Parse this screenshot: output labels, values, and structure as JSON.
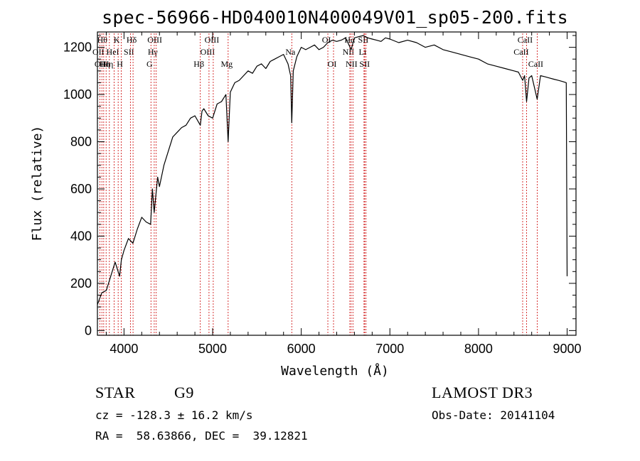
{
  "chart_data": {
    "type": "line",
    "title": "spec-56966-HD040010N400049V01_sp05-200.fits",
    "xlabel": "Wavelength (Å)",
    "ylabel": "Flux (relative)",
    "xlim": [
      3700,
      9100
    ],
    "ylim": [
      -20,
      1265
    ],
    "xticks": [
      4000,
      5000,
      6000,
      7000,
      8000,
      9000
    ],
    "yticks": [
      0,
      200,
      400,
      600,
      800,
      1000,
      1200
    ],
    "grid": false,
    "series": [
      {
        "x": [
          3700,
          3750,
          3800,
          3850,
          3900,
          3950,
          3970,
          4000,
          4050,
          4100,
          4150,
          4200,
          4250,
          4300,
          4320,
          4340,
          4380,
          4400,
          4450,
          4500,
          4550,
          4600,
          4650,
          4700,
          4750,
          4800,
          4861,
          4880,
          4900,
          4950,
          5000,
          5050,
          5100,
          5150,
          5175,
          5200,
          5250,
          5300,
          5350,
          5400,
          5450,
          5500,
          5550,
          5600,
          5650,
          5700,
          5750,
          5800,
          5850,
          5880,
          5893,
          5910,
          5950,
          6000,
          6050,
          6100,
          6150,
          6200,
          6250,
          6300,
          6350,
          6400,
          6450,
          6500,
          6563,
          6600,
          6650,
          6700,
          6750,
          6800,
          6850,
          6900,
          6950,
          7000,
          7100,
          7200,
          7300,
          7400,
          7500,
          7600,
          7700,
          7800,
          7900,
          8000,
          8100,
          8200,
          8300,
          8400,
          8450,
          8498,
          8520,
          8542,
          8570,
          8600,
          8662,
          8700,
          8750,
          8800,
          8850,
          8900,
          8950,
          8990,
          9000
        ],
        "y": [
          110,
          160,
          170,
          230,
          290,
          230,
          300,
          340,
          390,
          370,
          430,
          480,
          460,
          450,
          600,
          500,
          650,
          610,
          700,
          760,
          820,
          840,
          860,
          870,
          900,
          910,
          870,
          930,
          940,
          910,
          900,
          960,
          970,
          1000,
          800,
          1010,
          1050,
          1060,
          1080,
          1100,
          1090,
          1120,
          1130,
          1110,
          1140,
          1150,
          1160,
          1170,
          1130,
          1080,
          880,
          1100,
          1160,
          1200,
          1190,
          1200,
          1210,
          1190,
          1200,
          1220,
          1230,
          1225,
          1230,
          1240,
          1190,
          1240,
          1245,
          1250,
          1240,
          1235,
          1230,
          1225,
          1240,
          1235,
          1220,
          1230,
          1220,
          1200,
          1210,
          1190,
          1180,
          1170,
          1160,
          1150,
          1130,
          1120,
          1110,
          1100,
          1095,
          1060,
          1080,
          970,
          1070,
          1080,
          980,
          1080,
          1075,
          1070,
          1065,
          1060,
          1055,
          1050,
          230
        ]
      }
    ],
    "line_markers": [
      {
        "wavelength": 3727,
        "label": "OII",
        "row": 2
      },
      {
        "wavelength": 3750,
        "label": "OII",
        "row": 3
      },
      {
        "wavelength": 3771,
        "label": "Hθ",
        "row": 1
      },
      {
        "wavelength": 3798,
        "label": "Hη",
        "row": 3
      },
      {
        "wavelength": 3835,
        "label": "Hη",
        "row": 3
      },
      {
        "wavelength": 3889,
        "label": "HeI",
        "row": 2
      },
      {
        "wavelength": 3934,
        "label": "K",
        "row": 1
      },
      {
        "wavelength": 3969,
        "label": "H",
        "row": 3
      },
      {
        "wavelength": 4072,
        "label": "SII",
        "row": 2
      },
      {
        "wavelength": 4102,
        "label": "Hδ",
        "row": 1
      },
      {
        "wavelength": 4304,
        "label": "G",
        "row": 3
      },
      {
        "wavelength": 4341,
        "label": "Hγ",
        "row": 2
      },
      {
        "wavelength": 4363,
        "label": "OIII",
        "row": 1
      },
      {
        "wavelength": 4861,
        "label": "Hβ",
        "row": 3
      },
      {
        "wavelength": 4959,
        "label": "OIII",
        "row": 2
      },
      {
        "wavelength": 5007,
        "label": "OIII",
        "row": 1
      },
      {
        "wavelength": 5175,
        "label": "Mg",
        "row": 3
      },
      {
        "wavelength": 5893,
        "label": "Na",
        "row": 2
      },
      {
        "wavelength": 6300,
        "label": "OI",
        "row": 1
      },
      {
        "wavelength": 6364,
        "label": "OI",
        "row": 3
      },
      {
        "wavelength": 6548,
        "label": "NII",
        "row": 2
      },
      {
        "wavelength": 6563,
        "label": "Hα",
        "row": 1
      },
      {
        "wavelength": 6583,
        "label": "NII",
        "row": 3
      },
      {
        "wavelength": 6708,
        "label": "Li",
        "row": 2
      },
      {
        "wavelength": 6716,
        "label": "SII",
        "row": 1
      },
      {
        "wavelength": 6731,
        "label": "SII",
        "row": 3
      },
      {
        "wavelength": 8498,
        "label": "CaII",
        "row": 2
      },
      {
        "wavelength": 8542,
        "label": "CaII",
        "row": 1
      },
      {
        "wavelength": 8662,
        "label": "CaII",
        "row": 3
      }
    ]
  },
  "info": {
    "object_class": "STAR",
    "subclass": "G9",
    "survey": "LAMOST DR3",
    "cz": "cz = -128.3 ± 16.2 km/s",
    "obs_date": "Obs-Date: 20141104",
    "coords": "RA =  58.63866, DEC =  39.12821"
  },
  "colors": {
    "line": "#000000",
    "marker": "#cc0000",
    "axis": "#000000"
  }
}
